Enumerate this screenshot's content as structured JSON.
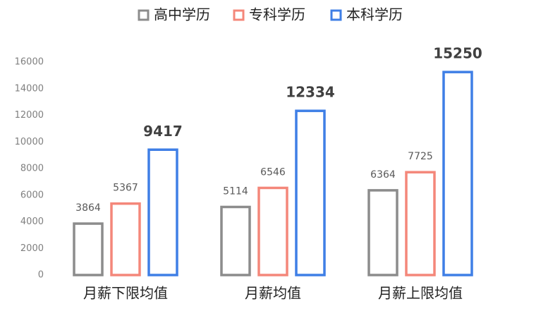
{
  "chart_data": {
    "type": "bar",
    "categories": [
      "月薪下限均值",
      "月薪均值",
      "月薪上限均值"
    ],
    "series": [
      {
        "name": "高中学历",
        "color": "#8c8c8c",
        "values": [
          3864,
          5114,
          6364
        ]
      },
      {
        "name": "专科学历",
        "color": "#f4877a",
        "values": [
          5367,
          6546,
          7725
        ]
      },
      {
        "name": "本科学历",
        "color": "#3f7fe6",
        "values": [
          9417,
          12334,
          15250
        ]
      }
    ],
    "ylim": [
      0,
      16000
    ],
    "yticks": [
      0,
      2000,
      4000,
      6000,
      8000,
      10000,
      12000,
      14000,
      16000
    ],
    "grid": false,
    "legend": "top"
  }
}
